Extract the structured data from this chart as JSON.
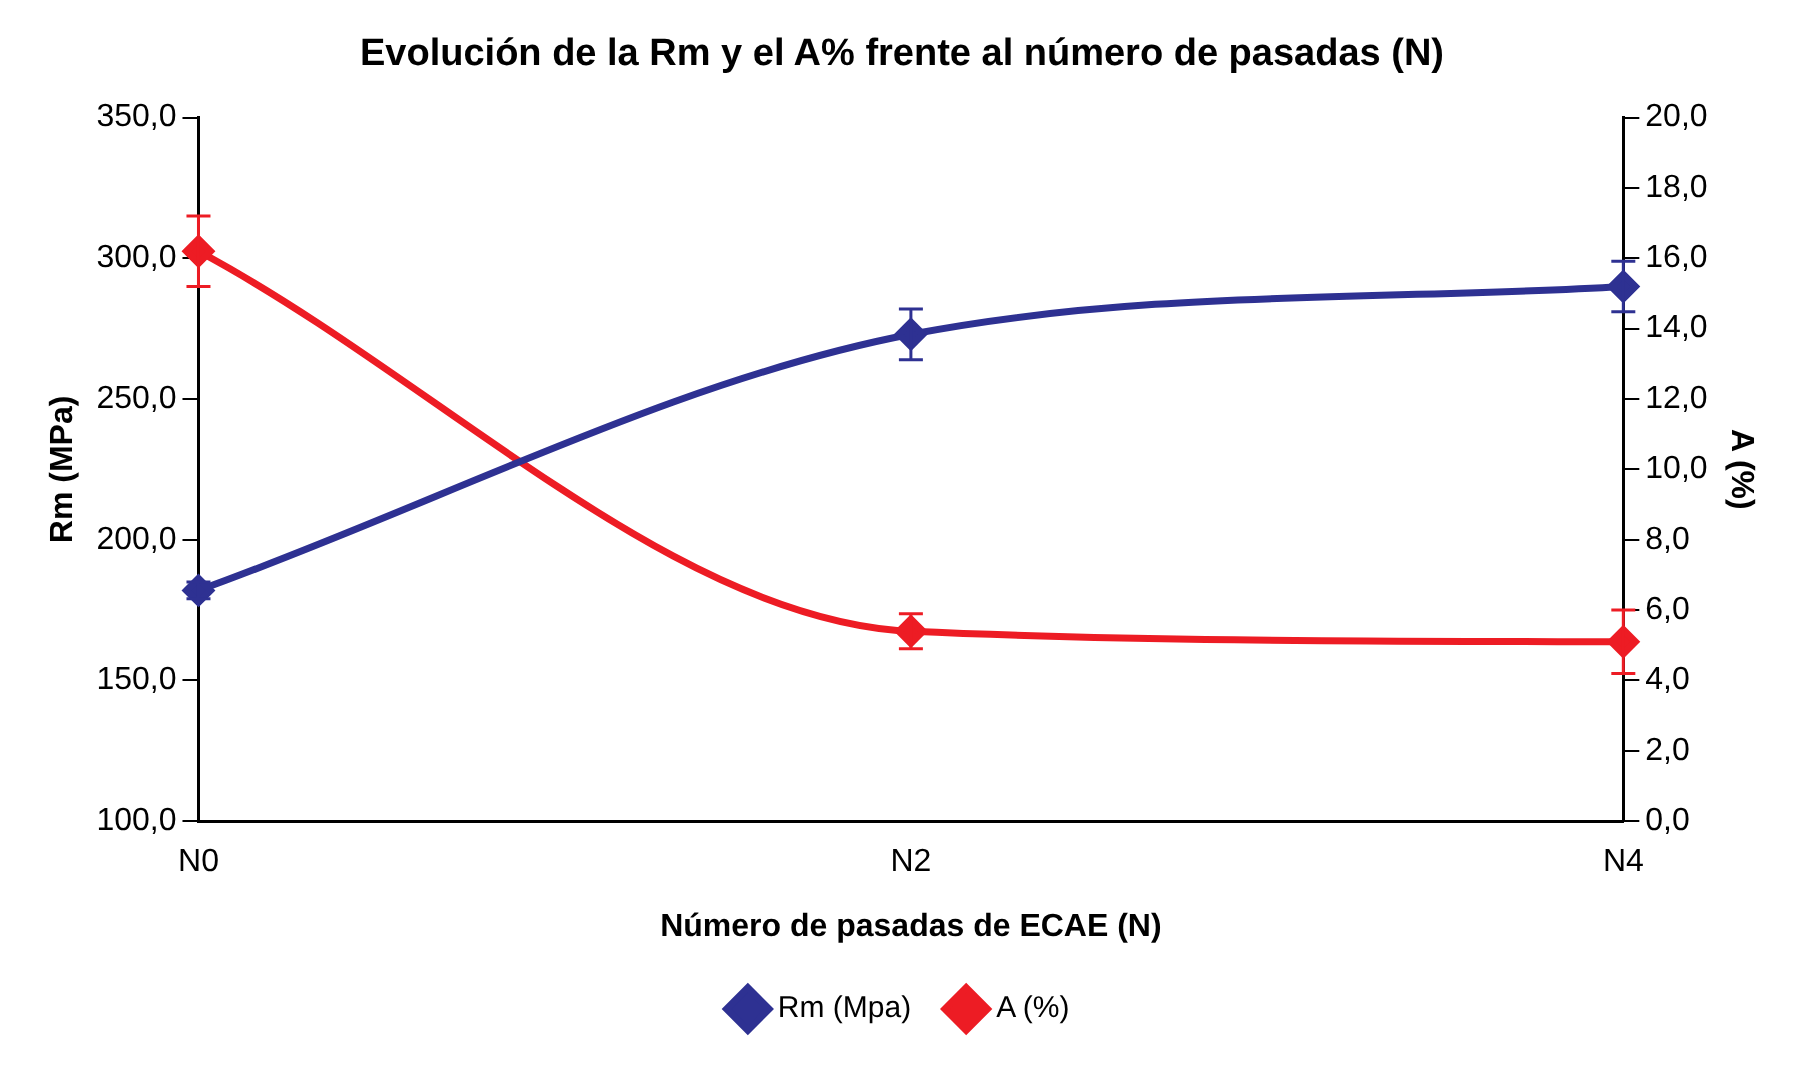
{
  "chart_data": {
    "type": "line",
    "title": "Evolución de la Rm y el A% frente al número de pasadas (N)",
    "xlabel": "Número de pasadas de ECAE (N)",
    "ylabel": "Rm (MPa)",
    "y2label": "A (%)",
    "categories": [
      "N0",
      "N2",
      "N4"
    ],
    "series": [
      {
        "name": "Rm (Mpa)",
        "color": "#2e3192",
        "values": [
          182,
          273,
          290
        ],
        "errors": [
          3,
          9,
          9
        ]
      },
      {
        "name": "A (%)",
        "color": "#ed1c24",
        "values": [
          16.2,
          5.4,
          5.1
        ],
        "errors": [
          1,
          0.5,
          0.9
        ],
        "axis": "y2"
      }
    ],
    "ylim": [
      100,
      350
    ],
    "yticks": [
      {
        "value": 100,
        "label": "100,0"
      },
      {
        "value": 150,
        "label": "150,0"
      },
      {
        "value": 200,
        "label": "200,0"
      },
      {
        "value": 250,
        "label": "250,0"
      },
      {
        "value": 300,
        "label": "300,0"
      },
      {
        "value": 350,
        "label": "350,0"
      }
    ],
    "y2lim": [
      0,
      20
    ],
    "y2ticks": [
      {
        "value": 0,
        "label": "0,0"
      },
      {
        "value": 2,
        "label": "2,0"
      },
      {
        "value": 4,
        "label": "4,0"
      },
      {
        "value": 6,
        "label": "6,0"
      },
      {
        "value": 8,
        "label": "8,0"
      },
      {
        "value": 10,
        "label": "10,0"
      },
      {
        "value": 12,
        "label": "12,0"
      },
      {
        "value": 14,
        "label": "14,0"
      },
      {
        "value": 16,
        "label": "16,0"
      },
      {
        "value": 18,
        "label": "18,0"
      },
      {
        "value": 20,
        "label": "20,0"
      }
    ],
    "grid": false,
    "legend": "bottom",
    "marker": "diamond",
    "line_style": "solid"
  }
}
